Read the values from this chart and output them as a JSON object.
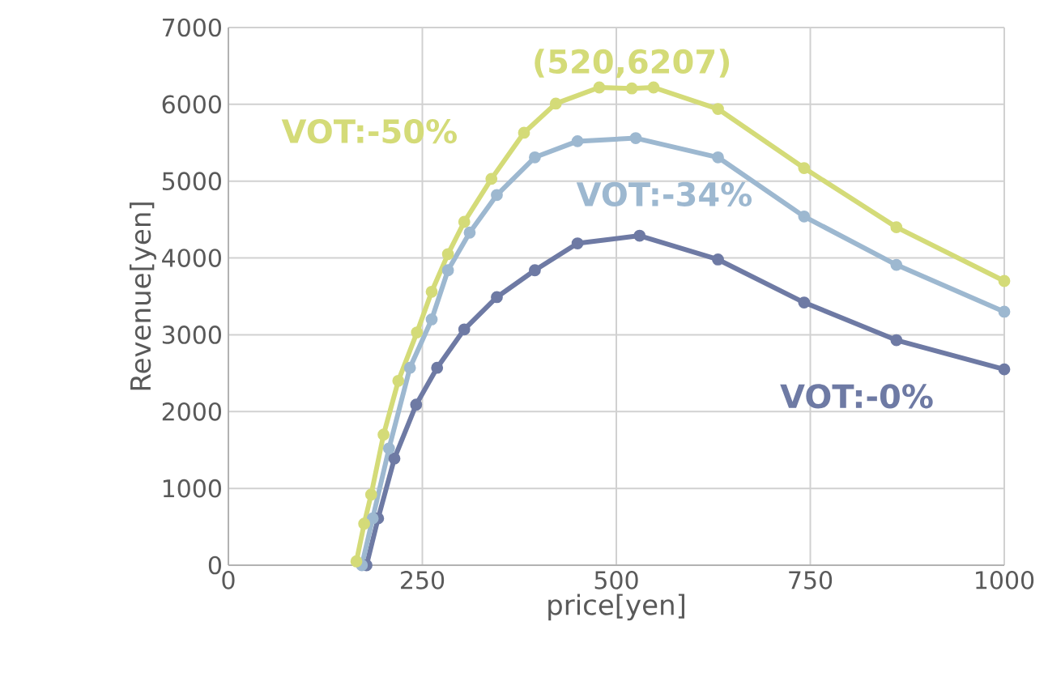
{
  "chart_data": {
    "type": "line",
    "xlabel": "price[yen]",
    "ylabel": "Revenue[yen]",
    "xlim": [
      0,
      1000
    ],
    "xticks": [
      0,
      250,
      500,
      750,
      1000
    ],
    "ylim": [
      0,
      7000
    ],
    "yticks": [
      0,
      1000,
      2000,
      3000,
      4000,
      5000,
      6000,
      7000
    ],
    "grid": true,
    "marker": "circle",
    "line_style": "solid",
    "annotations": [
      {
        "text": "(520,6207)",
        "x": 520,
        "y": 6207
      }
    ],
    "series": [
      {
        "name": "VOT:-0%",
        "color": "#6e7aa4",
        "x": [
          178,
          193,
          214,
          242,
          269,
          304,
          346,
          395,
          450,
          530,
          631,
          742,
          861,
          1000
        ],
        "values": [
          0,
          610,
          1390,
          2090,
          2570,
          3070,
          3490,
          3840,
          4190,
          4290,
          3980,
          3420,
          2930,
          2550
        ]
      },
      {
        "name": "VOT:-34%",
        "color": "#9db8d0",
        "x": [
          172,
          186,
          207,
          234,
          262,
          283,
          311,
          346,
          395,
          450,
          525,
          631,
          742,
          861,
          1000
        ],
        "values": [
          0,
          610,
          1520,
          2570,
          3200,
          3840,
          4330,
          4820,
          5310,
          5520,
          5560,
          5310,
          4540,
          3910,
          3300
        ]
      },
      {
        "name": "VOT:-50%",
        "color": "#d4db78",
        "x": [
          165,
          175,
          184,
          200,
          219,
          243,
          262,
          283,
          304,
          339,
          381,
          422,
          478,
          520,
          548,
          631,
          742,
          861,
          1000
        ],
        "values": [
          50,
          540,
          920,
          1700,
          2400,
          3030,
          3560,
          4050,
          4470,
          5030,
          5630,
          6010,
          6220,
          6207,
          6220,
          5940,
          5170,
          4400,
          3700
        ]
      }
    ]
  }
}
